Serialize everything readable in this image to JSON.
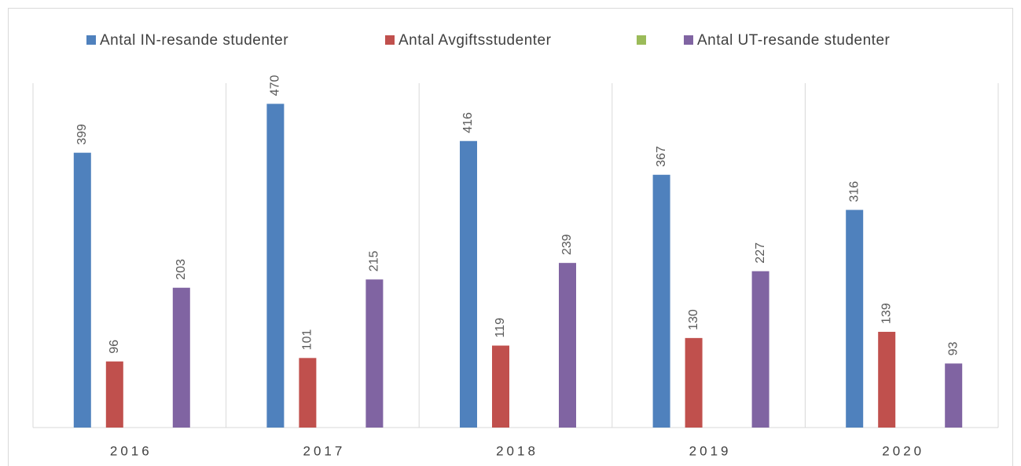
{
  "chart_data": {
    "type": "bar",
    "categories": [
      "2016",
      "2017",
      "2018",
      "2019",
      "2020"
    ],
    "series": [
      {
        "name": "Antal IN-resande studenter",
        "color": "#4f81bd",
        "values": [
          399,
          470,
          416,
          367,
          316
        ]
      },
      {
        "name": "Antal Avgiftsstudenter",
        "color": "#c0504d",
        "values": [
          96,
          101,
          119,
          130,
          139
        ]
      },
      {
        "color": "#9bbb59",
        "values": [
          null,
          null,
          null,
          null,
          null
        ]
      },
      {
        "name": "Antal UT-resande studenter",
        "color": "#8064a2",
        "values": [
          203,
          215,
          239,
          227,
          93
        ]
      }
    ],
    "ylim": [
      0,
      500
    ],
    "legend": "top"
  }
}
